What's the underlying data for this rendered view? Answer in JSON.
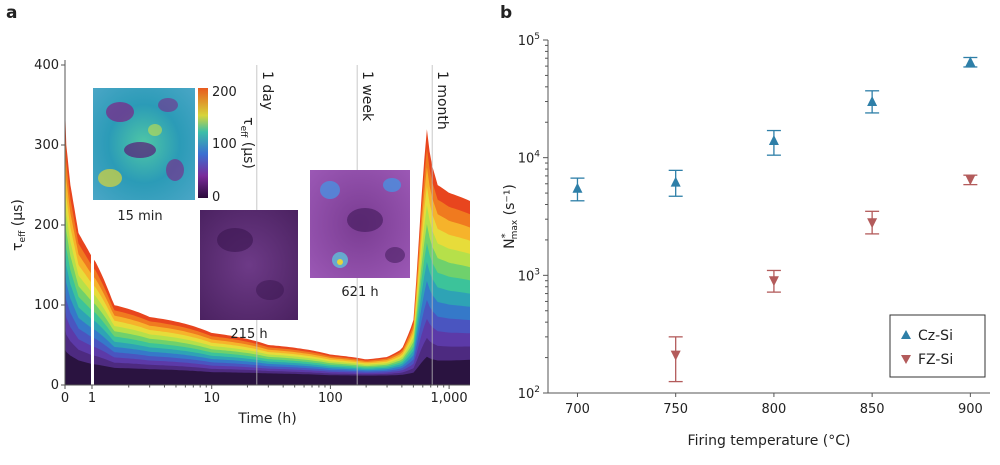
{
  "chart_data": [
    {
      "panel": "a",
      "type": "area",
      "xlabel": "Time (h)",
      "ylabel": "τeff (μs)",
      "ylabel_main": "τ",
      "ylabel_sub": "eff",
      "ylabel_unit": "(μs)",
      "xlim": [
        0,
        1500
      ],
      "ylim": [
        0,
        400
      ],
      "yticks": [
        "0",
        "100",
        "200",
        "300",
        "400"
      ],
      "xticks_linear": [
        "0",
        "1"
      ],
      "xticks_log": [
        "10",
        "100",
        "1,000"
      ],
      "reference_lines": [
        {
          "label": "1 day",
          "x": 24
        },
        {
          "label": "1 week",
          "x": 168
        },
        {
          "label": "1 month",
          "x": 720
        }
      ],
      "curves_max": {
        "x": [
          0,
          0.05,
          0.2,
          0.5,
          1,
          1.5,
          3,
          10,
          30,
          100,
          200,
          300,
          400,
          500,
          600,
          650,
          700,
          800,
          1000,
          1500
        ],
        "y": [
          350,
          300,
          250,
          190,
          160,
          100,
          85,
          65,
          50,
          38,
          32,
          35,
          45,
          80,
          260,
          320,
          280,
          250,
          240,
          230
        ]
      },
      "curves_min": {
        "x": [
          0,
          1,
          10,
          100,
          500,
          700,
          1500
        ],
        "y": [
          20,
          15,
          12,
          10,
          10,
          12,
          15
        ]
      },
      "insets": [
        {
          "caption": "15 min",
          "colorbar": {
            "label_main": "τ",
            "label_sub": "eff",
            "label_unit": "(μs)",
            "ticks": [
              "0",
              "100",
              "200"
            ]
          }
        },
        {
          "caption": "215 h"
        },
        {
          "caption": "621 h"
        }
      ]
    },
    {
      "panel": "b",
      "type": "scatter",
      "xlabel": "Firing temperature (°C)",
      "ylabel": "N*max (s⁻¹)",
      "ylabel_main": "N",
      "ylabel_sup": "*",
      "ylabel_sub": "max",
      "ylabel_unit": "(s⁻¹)",
      "xticks": [
        700,
        750,
        800,
        850,
        900
      ],
      "yscale": "log",
      "ylim": [
        100,
        100000
      ],
      "yticks": [
        {
          "base": "10",
          "exp": "2",
          "value": 100
        },
        {
          "base": "10",
          "exp": "3",
          "value": 1000
        },
        {
          "base": "10",
          "exp": "4",
          "value": 10000
        },
        {
          "base": "10",
          "exp": "5",
          "value": 100000
        }
      ],
      "legend_position": "bottom-right",
      "series": [
        {
          "name": "Cz-Si",
          "marker": "triangle-up",
          "color": "#2e7fa8",
          "x": [
            700,
            750,
            800,
            850,
            900
          ],
          "y": [
            5500,
            6200,
            14000,
            30000,
            65000
          ],
          "err_low": [
            4300,
            4700,
            10500,
            24000,
            59000
          ],
          "err_high": [
            6700,
            7800,
            17000,
            37000,
            71000
          ]
        },
        {
          "name": "FZ-Si",
          "marker": "triangle-down",
          "color": "#b35b5b",
          "x": [
            750,
            800,
            850,
            900
          ],
          "y": [
            210,
            900,
            2800,
            6500
          ],
          "err_low": [
            125,
            720,
            2250,
            5900
          ],
          "err_high": [
            300,
            1100,
            3500,
            7100
          ]
        }
      ]
    }
  ]
}
